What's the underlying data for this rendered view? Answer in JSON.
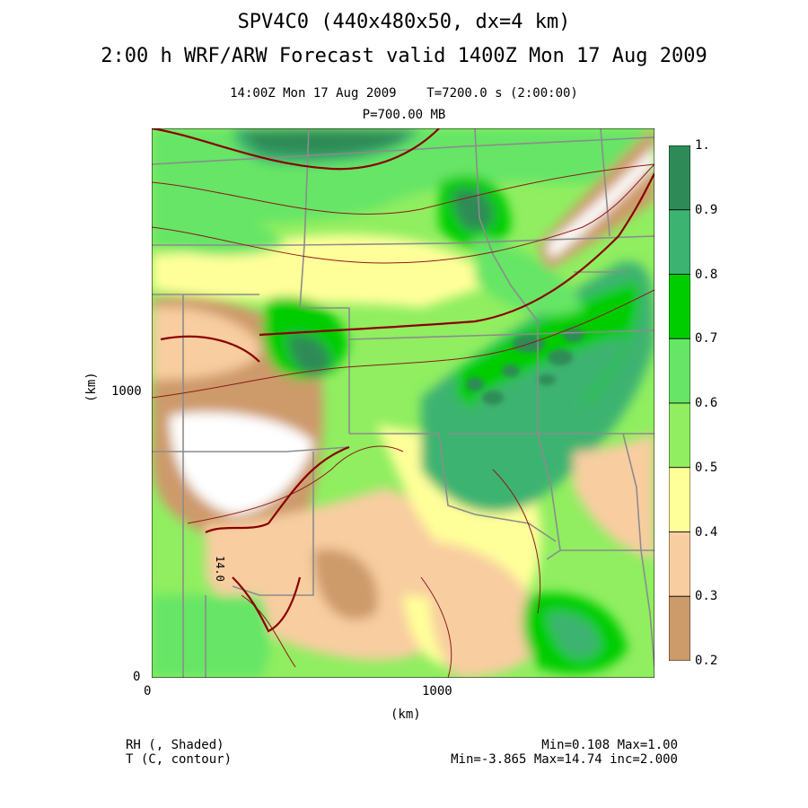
{
  "header": {
    "title_line1": "SPV4C0 (440x480x50, dx=4 km)",
    "title_line2": "2:00 h  WRF/ARW Forecast valid 1400Z Mon 17 Aug 2009",
    "valid_time": "14:00Z Mon 17 Aug 2009",
    "forecast_time": "T=7200.0 s (2:00:00)",
    "level": "P=700.00 MB"
  },
  "axes": {
    "x_ticks": [
      "0",
      "1000"
    ],
    "y_ticks": [
      "0",
      "1000"
    ],
    "x_label": "(km)",
    "y_label": "(km)"
  },
  "colorbar": {
    "labels": [
      "1.",
      "0.9",
      "0.8",
      "0.7",
      "0.6",
      "0.5",
      "0.4",
      "0.3",
      "0.2"
    ],
    "colors": [
      "#2e8b57",
      "#3cb371",
      "#00cd00",
      "#66e566",
      "#90ee60",
      "#ffff99",
      "#f8cda0",
      "#cd9a6a"
    ]
  },
  "contour_label": "14.0",
  "footer": {
    "field1": "RH (, Shaded)",
    "field2": "T (C, contour)",
    "stats1": "Min=0.108 Max=1.00",
    "stats2": "Min=-3.865 Max=14.74 inc=2.000"
  }
}
